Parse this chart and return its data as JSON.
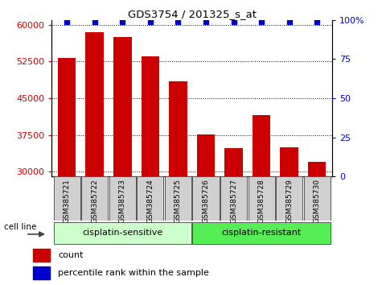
{
  "title": "GDS3754 / 201325_s_at",
  "samples": [
    "GSM385721",
    "GSM385722",
    "GSM385723",
    "GSM385724",
    "GSM385725",
    "GSM385726",
    "GSM385727",
    "GSM385728",
    "GSM385729",
    "GSM385730"
  ],
  "counts": [
    53200,
    58500,
    57500,
    53500,
    48500,
    37600,
    34800,
    41500,
    35000,
    32000
  ],
  "bar_color": "#cc0000",
  "dot_color": "#0000cc",
  "ylim_left": [
    29000,
    61000
  ],
  "ylim_right": [
    0,
    100
  ],
  "yticks_left": [
    30000,
    37500,
    45000,
    52500,
    60000
  ],
  "yticks_right": [
    0,
    25,
    50,
    75,
    100
  ],
  "group_labels": [
    "cisplatin-sensitive",
    "cisplatin-resistant"
  ],
  "group_splits": [
    5
  ],
  "group_colors": [
    "#ccffcc",
    "#55ee55"
  ],
  "cell_line_label": "cell line",
  "legend_count_label": "count",
  "legend_pct_label": "percentile rank within the sample",
  "bar_color_legend": "#cc0000",
  "dot_color_legend": "#0000cc"
}
